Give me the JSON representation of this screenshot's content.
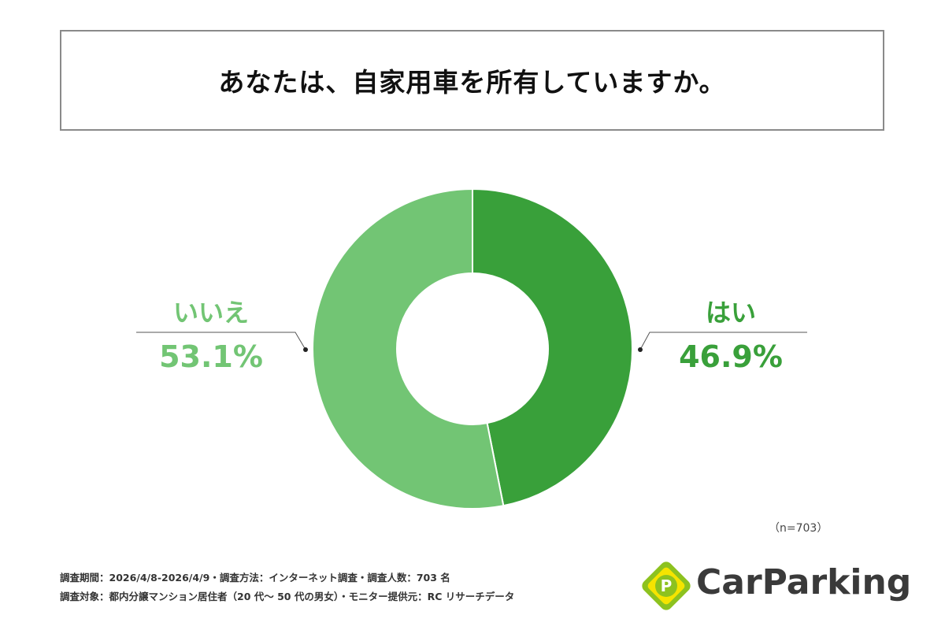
{
  "title": "あなたは、自家用車を所有していますか。",
  "sample_size": "（n=703）",
  "footer": {
    "line1": "調査期間：2026/4/8-2026/4/9・調査方法：インターネット調査・調査人数：703 名",
    "line2": "調査対象：都内分譲マンション居住者（20 代〜 50 代の男女）・モニター提供元：RC リサーチデータ"
  },
  "logo": {
    "text": "CarParking",
    "mark": "P",
    "colors": {
      "green": "#8dc21f",
      "yellow": "#f5e400",
      "dark": "#3a3a3a"
    }
  },
  "chart_data": {
    "type": "pie",
    "donut": true,
    "slices": [
      {
        "label": "はい",
        "value": 46.9,
        "display": "46.9%",
        "color": "#39a03a"
      },
      {
        "label": "いいえ",
        "value": 53.1,
        "display": "53.1%",
        "color": "#72c574"
      }
    ]
  }
}
